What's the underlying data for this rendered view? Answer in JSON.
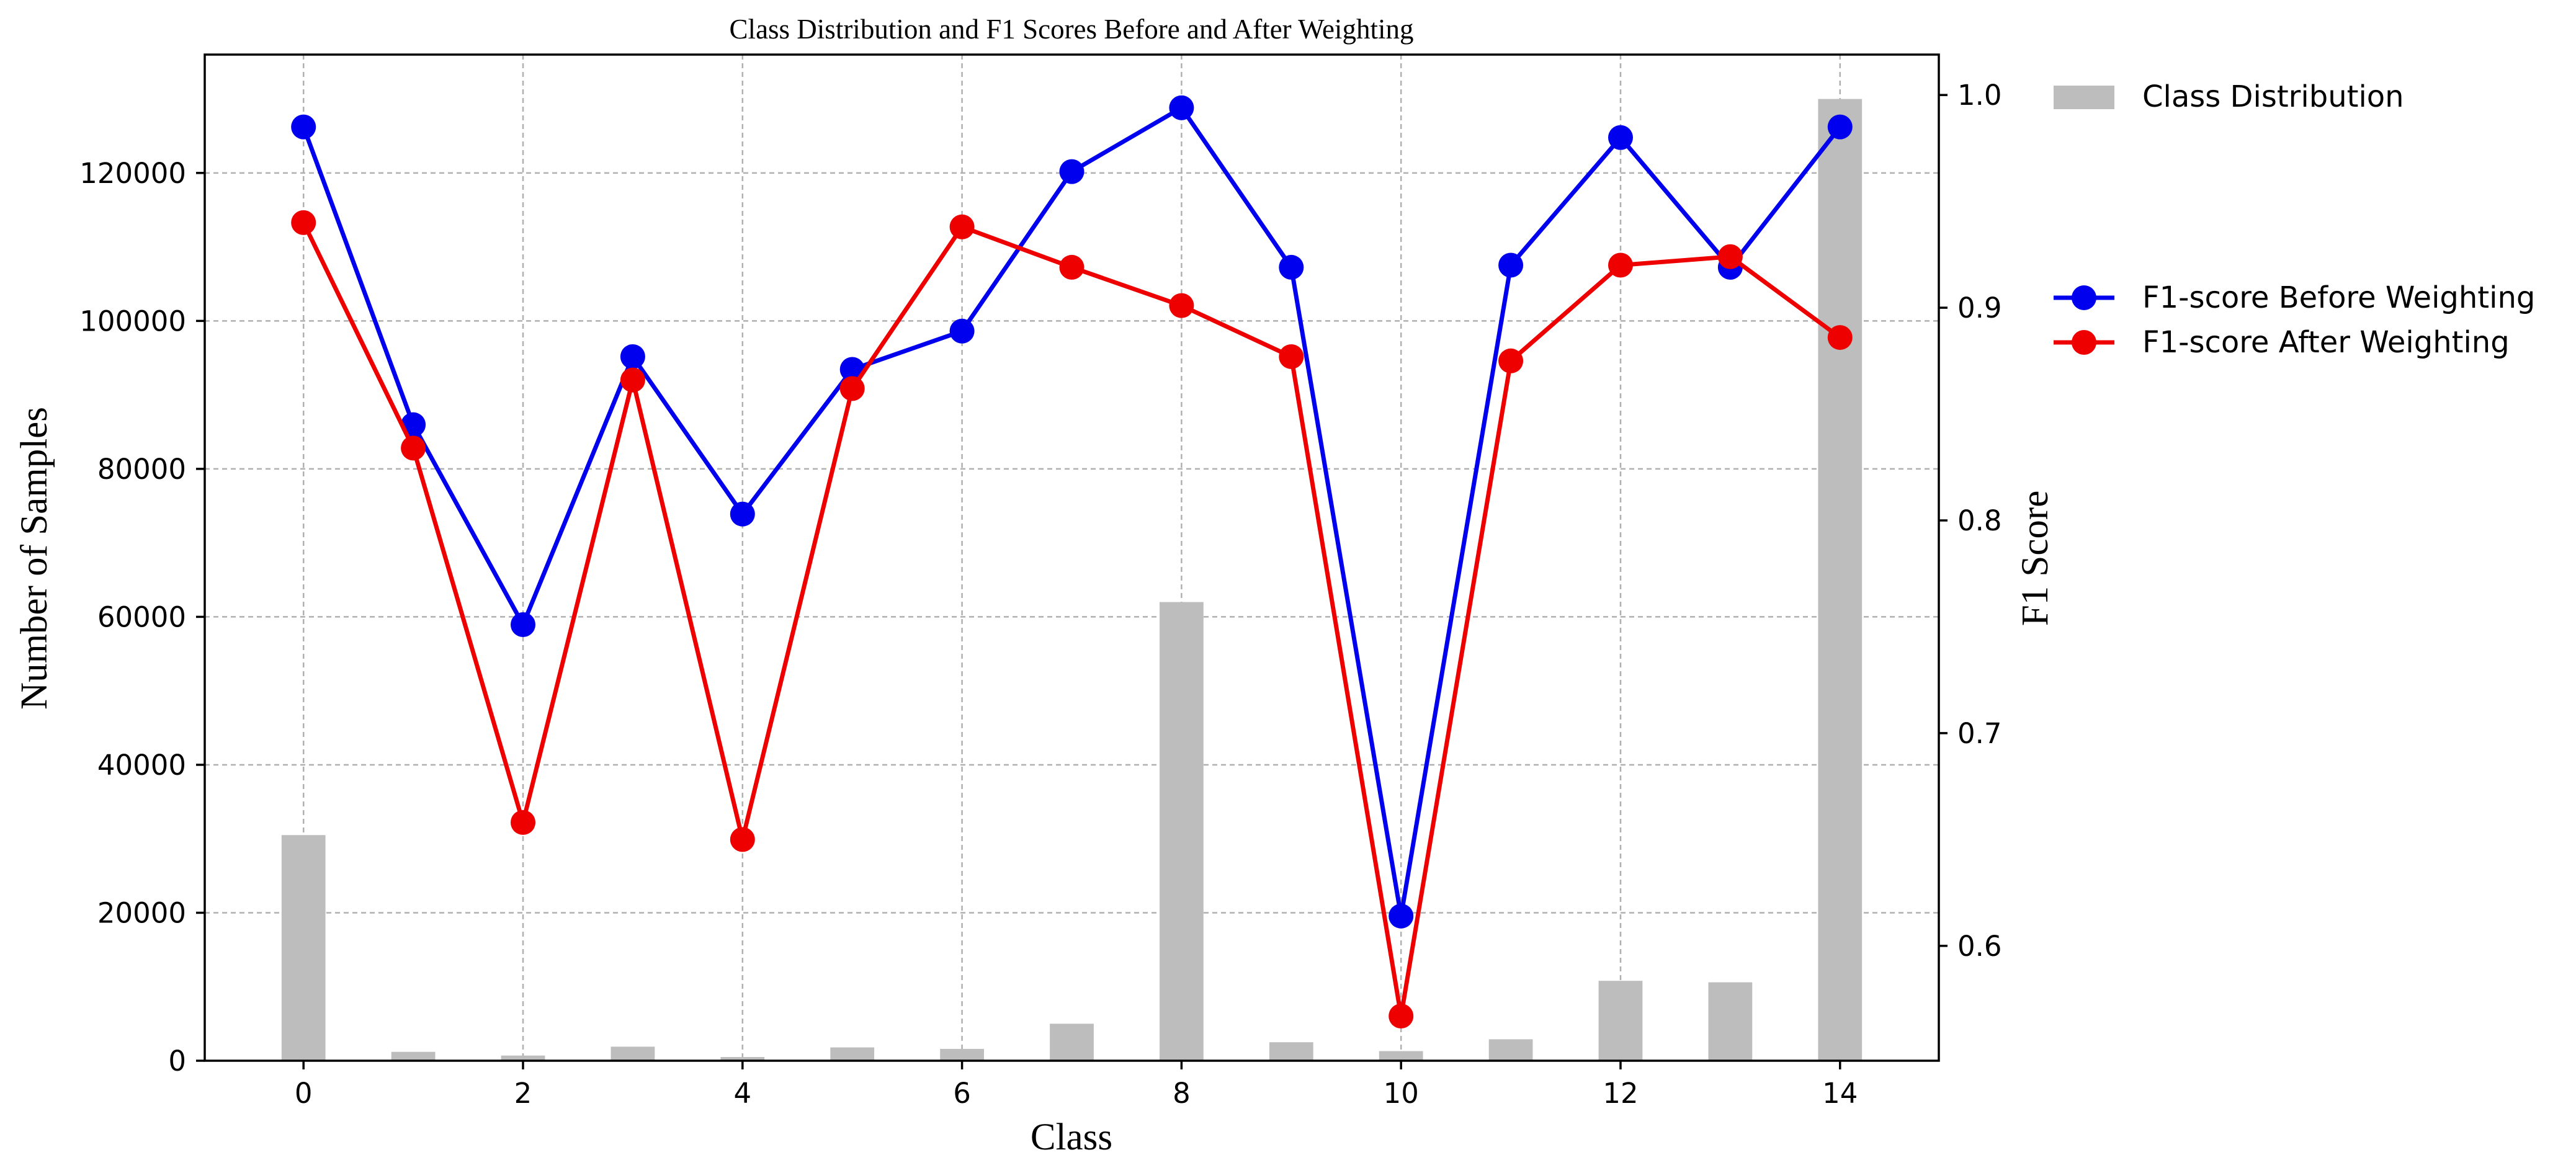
{
  "chart_data": {
    "type": "bar+line",
    "title": "Class Distribution and F1 Scores Before and After Weighting",
    "xlabel": "Class",
    "ylabel_left": "Number of Samples",
    "ylabel_right": "F1 Score",
    "xlim": [
      -0.9,
      14.9
    ],
    "ylim_left": [
      0,
      136000
    ],
    "ylim_right": [
      0.546,
      1.019
    ],
    "x_ticks": [
      0,
      2,
      4,
      6,
      8,
      10,
      12,
      14
    ],
    "y_left_ticks": [
      0,
      20000,
      40000,
      60000,
      80000,
      100000,
      120000
    ],
    "y_right_ticks": [
      0.6,
      0.7,
      0.8,
      0.9,
      1.0
    ],
    "grid": true,
    "legend_placement": "outside-right",
    "categories": [
      0,
      1,
      2,
      3,
      4,
      5,
      6,
      7,
      8,
      9,
      10,
      11,
      12,
      13,
      14
    ],
    "bars": {
      "name": "Class Distribution",
      "color": "#bdbdbd",
      "values": [
        30500,
        1200,
        700,
        1900,
        500,
        1800,
        1600,
        5000,
        62000,
        2500,
        1300,
        2900,
        10800,
        10600,
        130000
      ]
    },
    "series": [
      {
        "name": "F1-score Before Weighting",
        "color": "#0000ee",
        "values": [
          0.985,
          0.845,
          0.751,
          0.877,
          0.803,
          0.871,
          0.889,
          0.964,
          0.994,
          0.919,
          0.614,
          0.92,
          0.98,
          0.919,
          0.985
        ]
      },
      {
        "name": "F1-score After Weighting",
        "color": "#ee0000",
        "values": [
          0.94,
          0.834,
          0.658,
          0.866,
          0.65,
          0.862,
          0.938,
          0.919,
          0.901,
          0.877,
          0.567,
          0.875,
          0.92,
          0.924,
          0.886
        ]
      }
    ]
  }
}
